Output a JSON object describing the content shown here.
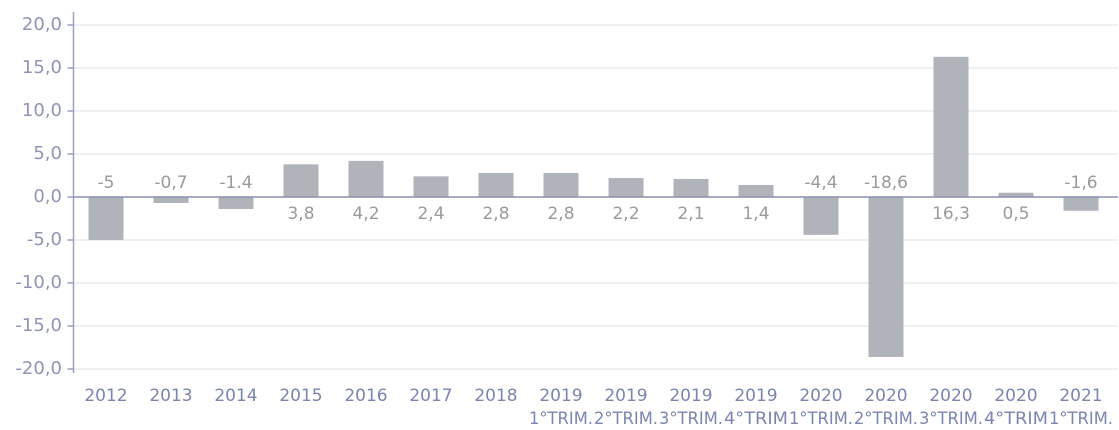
{
  "chart_data": {
    "type": "bar",
    "categories": [
      "2012",
      "2013",
      "2014",
      "2015",
      "2016",
      "2017",
      "2018",
      "2019",
      "2019",
      "2019",
      "2019",
      "2020",
      "2020",
      "2020",
      "2020",
      "2021"
    ],
    "period_labels": [
      null,
      null,
      null,
      null,
      null,
      null,
      null,
      "1°TRIM.",
      "2°TRIM.",
      "3°TRIM.",
      "4°TRIM",
      "1°TRIM.",
      "2°TRIM.",
      "3°TRIM.",
      "4°TRIM",
      "1°TRIM."
    ],
    "values": [
      -5,
      -0.7,
      -1.4,
      3.8,
      4.2,
      2.4,
      2.8,
      2.8,
      2.2,
      2.1,
      1.4,
      -4.4,
      -18.6,
      16.3,
      0.5,
      -1.6
    ],
    "value_labels": [
      "-5",
      "-0,7",
      "-1.4",
      "3,8",
      "4,2",
      "2,4",
      "2,8",
      "2,8",
      "2,2",
      "2,1",
      "1,4",
      "-4,4",
      "-18,6",
      "16,3",
      "0,5",
      "-1,6"
    ],
    "color": "#b0b3b9",
    "ylim": [
      -20,
      20
    ],
    "yticks": [
      {
        "value": 20,
        "label": "20,0"
      },
      {
        "value": 15,
        "label": "15,0"
      },
      {
        "value": 10,
        "label": "10,0"
      },
      {
        "value": 5,
        "label": "5,0"
      },
      {
        "value": 0,
        "label": "0,0"
      },
      {
        "value": -5,
        "label": "-5,0"
      },
      {
        "value": -10,
        "label": "-10,0"
      },
      {
        "value": -15,
        "label": "-15,0"
      },
      {
        "value": -20,
        "label": "-20,0"
      }
    ],
    "grid": true
  }
}
